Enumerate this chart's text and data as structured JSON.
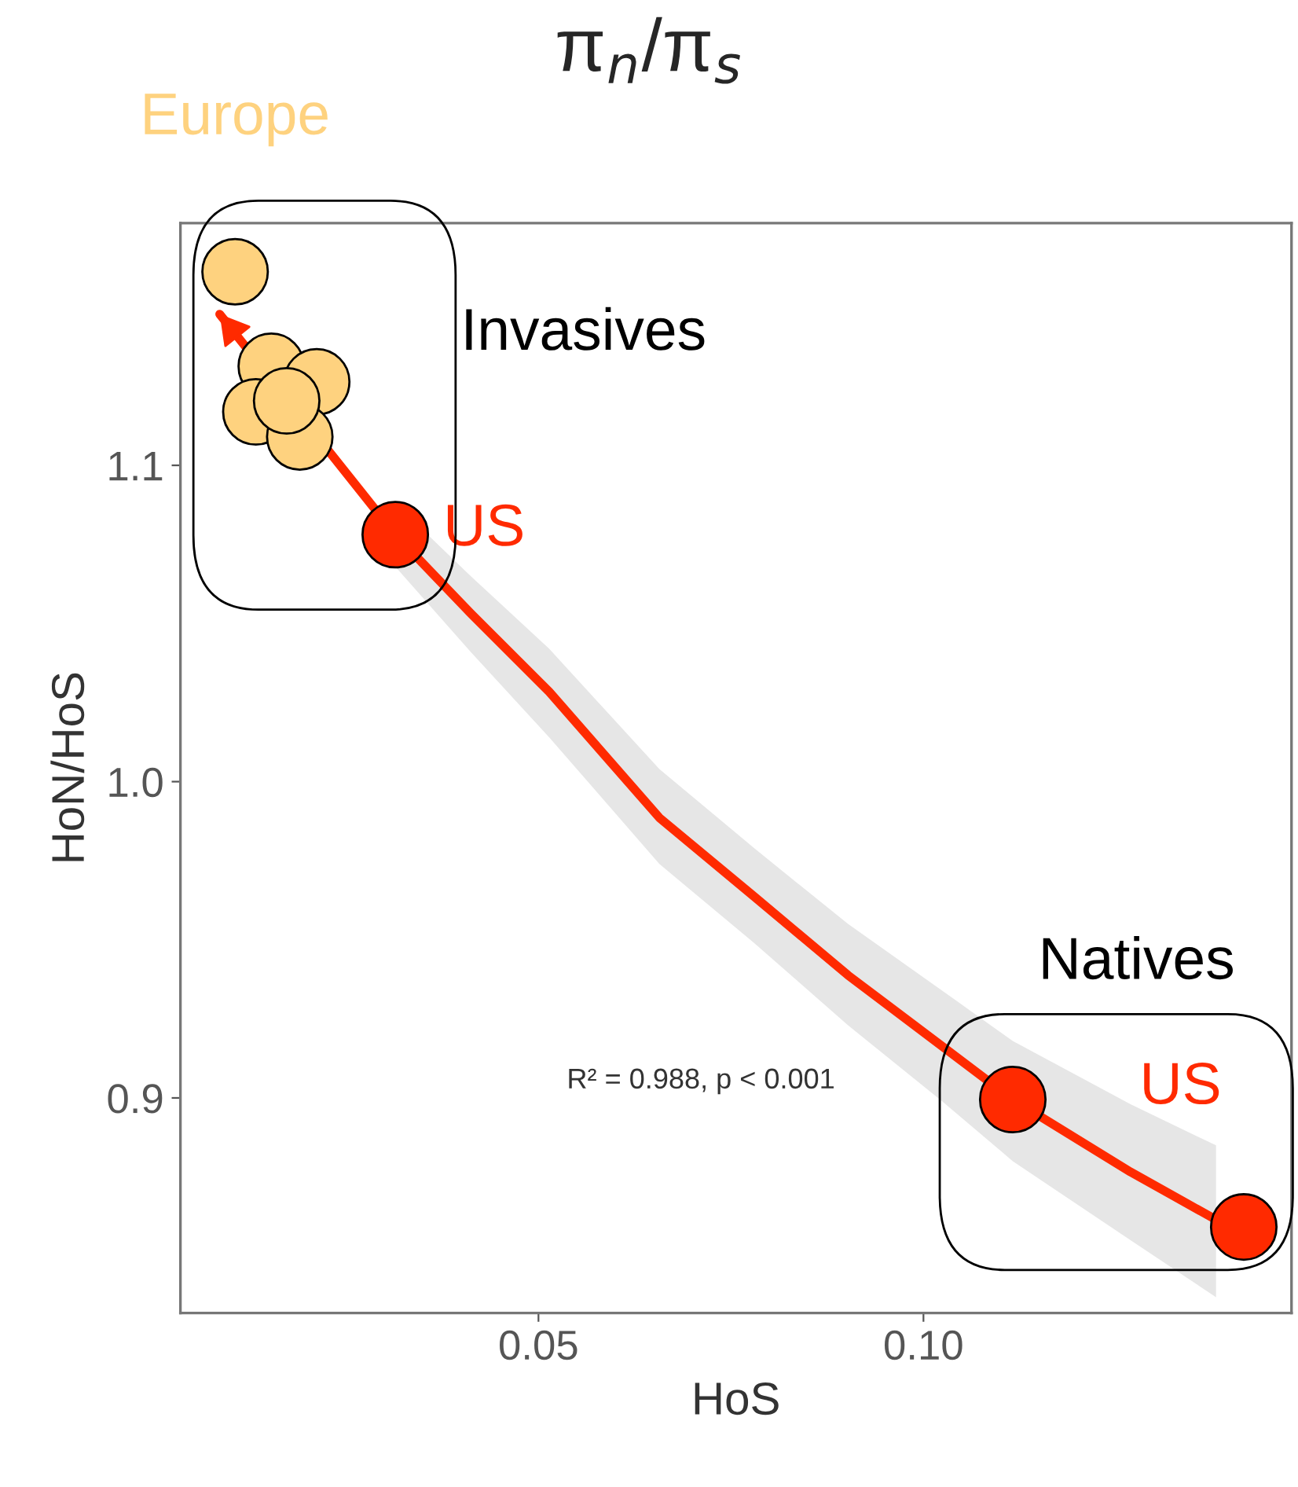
{
  "chart_data": {
    "type": "scatter",
    "title": "π$_{n}$/π$_{s}$",
    "xlabel": "HoS",
    "ylabel": "HoN/HoS",
    "xlim": [
      0.0035,
      0.1478
    ],
    "ylim": [
      0.832,
      1.1766
    ],
    "xticks": [
      {
        "value": 0.05,
        "label": "0.05"
      },
      {
        "value": 0.1,
        "label": "0.10"
      }
    ],
    "yticks": [
      {
        "value": 0.9,
        "label": "0.9"
      },
      {
        "value": 1.0,
        "label": "1.0"
      },
      {
        "value": 1.1,
        "label": "1.1"
      }
    ],
    "grid": false,
    "legend": false,
    "series": [
      {
        "type": "line",
        "marker": "none",
        "color": "#ff2a00",
        "x": [
          0.0086,
          0.0314,
          0.0412,
          0.0514,
          0.0657,
          0.078,
          0.0902,
          0.1024,
          0.1116,
          0.1269,
          0.138
        ],
        "values": [
          1.1478,
          1.0781,
          1.0532,
          1.0284,
          0.9886,
          0.9637,
          0.9388,
          0.9164,
          0.8995,
          0.8766,
          0.8615
        ],
        "lower": [
          null,
          1.068,
          1.041,
          1.014,
          0.974,
          0.949,
          0.923,
          0.899,
          0.88,
          0.855,
          0.837
        ],
        "upper": [
          null,
          1.088,
          1.065,
          1.042,
          1.004,
          0.979,
          0.955,
          0.934,
          0.918,
          0.898,
          0.885
        ]
      },
      {
        "marker": "circle",
        "color": "#fed27f",
        "x": [
          0.0106,
          0.0153,
          0.0212,
          0.0133,
          0.019,
          0.0173
        ],
        "values": [
          1.1612,
          1.1313,
          1.1264,
          1.1169,
          1.109,
          1.1204
        ]
      },
      {
        "marker": "circle",
        "color": "#ff2a00",
        "x": [
          0.0314,
          0.1116,
          0.1416
        ],
        "values": [
          1.0781,
          0.8995,
          0.8592
        ]
      }
    ],
    "annotations": [
      {
        "text": "Europe",
        "x": 0.0106,
        "y": 1.1612
      },
      {
        "text": "US",
        "x": 0.0314,
        "y": 1.0781
      },
      "Invasives",
      "Natives",
      "US",
      "R² = 0.988, p < 0.001"
    ]
  }
}
